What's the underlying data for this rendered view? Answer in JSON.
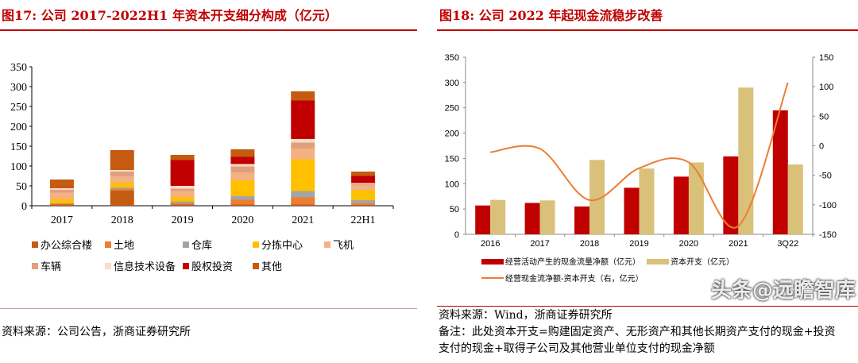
{
  "left": {
    "title": "图17:   公司 2017-2022H1 年资本开支细分构成（亿元）",
    "source": "资料来源：公司公告，浙商证券研究所"
  },
  "right": {
    "title": "图18:   公司 2022 年起现金流稳步改善",
    "source": "资料来源：Wind，浙商证券研究所",
    "note": "备注：此处资本开支=购建固定资产、无形资产和其他长期资产支付的现金+投资支付的现金+取得子公司及其他营业单位支付的现金净额"
  },
  "watermark": "头条@远瞻智库",
  "chart_data": [
    {
      "type": "bar",
      "stacked": true,
      "categories": [
        "2017",
        "2018",
        "2019",
        "2020",
        "2021",
        "22H1"
      ],
      "ylim": [
        0,
        350
      ],
      "yticks": [
        0,
        50,
        100,
        150,
        200,
        250,
        300,
        350
      ],
      "legend_position": "bottom",
      "series": [
        {
          "name": "办公综合楼",
          "color": "#c55a11",
          "values": [
            3,
            38,
            3,
            3,
            3,
            2
          ]
        },
        {
          "name": "土地",
          "color": "#ed7d31",
          "values": [
            2,
            4,
            3,
            12,
            18,
            4
          ]
        },
        {
          "name": "仓库",
          "color": "#a5a5a5",
          "values": [
            1,
            4,
            5,
            9,
            16,
            8
          ]
        },
        {
          "name": "分拣中心",
          "color": "#ffc000",
          "values": [
            10,
            12,
            11,
            40,
            80,
            25
          ]
        },
        {
          "name": "飞机",
          "color": "#f4b183",
          "values": [
            17,
            16,
            15,
            20,
            27,
            12
          ]
        },
        {
          "name": "车辆",
          "color": "#e0a07c",
          "values": [
            7,
            12,
            6,
            15,
            15,
            3
          ]
        },
        {
          "name": "信息技术设备",
          "color": "#fbdcc8",
          "values": [
            4,
            4,
            7,
            6,
            9,
            3
          ]
        },
        {
          "name": "股权投资",
          "color": "#c00000",
          "values": [
            0,
            0,
            65,
            18,
            97,
            18
          ]
        },
        {
          "name": "其他",
          "color": "#c55a11",
          "values": [
            22,
            50,
            13,
            19,
            23,
            11
          ]
        }
      ]
    },
    {
      "type": "bar+line",
      "categories": [
        "2016",
        "2017",
        "2018",
        "2019",
        "2020",
        "2021",
        "3Q22"
      ],
      "ylim": [
        0,
        350
      ],
      "yticks": [
        0,
        50,
        100,
        150,
        200,
        250,
        300,
        350
      ],
      "y2lim": [
        -150,
        150
      ],
      "y2ticks": [
        -150,
        -100,
        -50,
        0,
        50,
        100,
        150
      ],
      "legend_position": "bottom",
      "series": [
        {
          "name": "经营活动产生的现金流量净额（亿元）",
          "color": "#c00000",
          "axis": "left",
          "kind": "bar",
          "values": [
            57,
            62,
            55,
            92,
            114,
            154,
            245
          ]
        },
        {
          "name": "资本开支（亿元）",
          "color": "#d9c17a",
          "axis": "left",
          "kind": "bar",
          "values": [
            68,
            67,
            147,
            130,
            142,
            290,
            138
          ]
        },
        {
          "name": "经营现金流净额-资本开支（右，亿元）",
          "color": "#ed7d31",
          "axis": "right",
          "kind": "line",
          "values": [
            -11,
            -5,
            -92,
            -38,
            -28,
            -136,
            107
          ]
        }
      ]
    }
  ]
}
